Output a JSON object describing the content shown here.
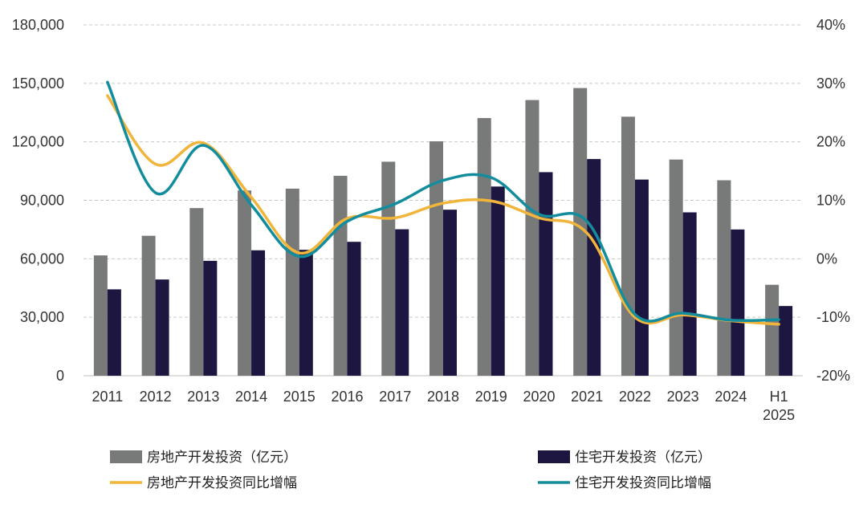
{
  "chart_data": {
    "type": "bar",
    "categories": [
      "2011",
      "2012",
      "2013",
      "2014",
      "2015",
      "2016",
      "2017",
      "2018",
      "2019",
      "2020",
      "2021",
      "2022",
      "2023",
      "2024",
      "H1\n2025"
    ],
    "y_left": {
      "ticks": [
        "0",
        "30,000",
        "60,000",
        "90,000",
        "120,000",
        "150,000",
        "180,000"
      ],
      "ylim": [
        0,
        180000
      ]
    },
    "y_right": {
      "ticks": [
        "-20%",
        "-10%",
        "0%",
        "10%",
        "20%",
        "30%",
        "40%"
      ],
      "ylim": [
        -20,
        40
      ]
    },
    "grid": true,
    "legend_position": "bottom",
    "series": [
      {
        "name": "房地产开发投资（亿元）",
        "type": "bar",
        "axis": "left",
        "color": "#777a79",
        "values": [
          61740,
          71800,
          86013,
          95036,
          95979,
          102581,
          109799,
          120264,
          132194,
          141443,
          147602,
          132895,
          110913,
          100280,
          46658
        ]
      },
      {
        "name": "住宅开发投资（亿元）",
        "type": "bar",
        "axis": "left",
        "color": "#1c1640",
        "values": [
          44320,
          49374,
          58951,
          64352,
          64595,
          68704,
          75148,
          85192,
          97071,
          104446,
          111173,
          100646,
          83820,
          75040,
          35770
        ]
      },
      {
        "name": "房地产开发投资同比增幅",
        "type": "line",
        "axis": "right",
        "color": "#f0b53a",
        "values": [
          27.9,
          16.2,
          19.8,
          10.5,
          1.0,
          6.9,
          7.0,
          9.5,
          9.9,
          7.0,
          4.4,
          -10.0,
          -9.6,
          -10.6,
          -11.2
        ]
      },
      {
        "name": "住宅开发投资同比增幅",
        "type": "line",
        "axis": "right",
        "color": "#138d9e",
        "values": [
          30.2,
          11.3,
          19.4,
          9.2,
          0.4,
          6.4,
          9.4,
          13.4,
          13.9,
          7.6,
          6.4,
          -9.5,
          -9.3,
          -10.5,
          -10.4
        ]
      }
    ]
  }
}
